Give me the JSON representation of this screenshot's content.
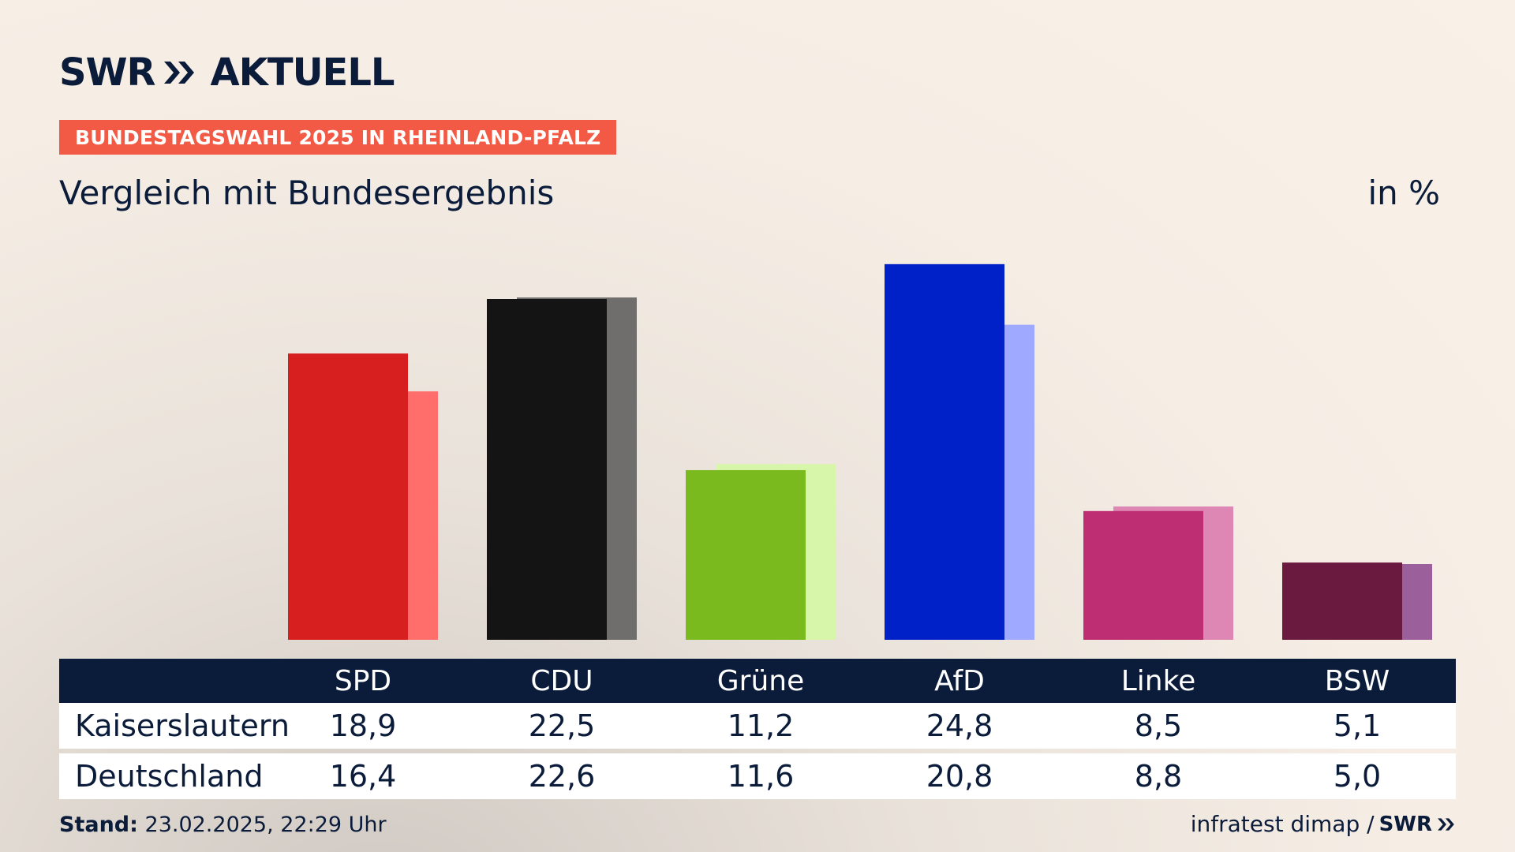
{
  "brand": {
    "swr": "SWR",
    "aktuell": "AKTUELL"
  },
  "kicker": "BUNDESTAGSWAHL 2025 IN RHEINLAND-PFALZ",
  "subtitle": "Vergleich mit Bundesergebnis",
  "unit": "in %",
  "chart_data": {
    "type": "bar",
    "title": "",
    "categories": [
      "SPD",
      "CDU",
      "Grüne",
      "AfD",
      "Linke",
      "BSW"
    ],
    "series": [
      {
        "name": "Kaiserslautern",
        "values": [
          18.9,
          22.5,
          11.2,
          24.8,
          8.5,
          5.1
        ]
      },
      {
        "name": "Deutschland",
        "values": [
          16.4,
          22.6,
          11.6,
          20.8,
          8.8,
          5.0
        ]
      }
    ],
    "value_labels": [
      [
        "18,9",
        "22,5",
        "11,2",
        "24,8",
        "8,5",
        "5,1"
      ],
      [
        "16,4",
        "22,6",
        "11,6",
        "20,8",
        "8,8",
        "5,0"
      ]
    ],
    "colors_primary": [
      "#d81f1f",
      "#141414",
      "#7aba1e",
      "#0021c8",
      "#bd2f72",
      "#6a1a3e"
    ],
    "colors_secondary": [
      "#ff6e6a",
      "#6f6e6c",
      "#d8f6a9",
      "#9fa9ff",
      "#de87b4",
      "#9b609b"
    ],
    "ylim": [
      0,
      26
    ],
    "grid": false
  },
  "footer": {
    "stand_label": "Stand:",
    "stand_value": "23.02.2025, 22:29 Uhr",
    "source": "infratest dimap /",
    "source_brand": "SWR"
  }
}
